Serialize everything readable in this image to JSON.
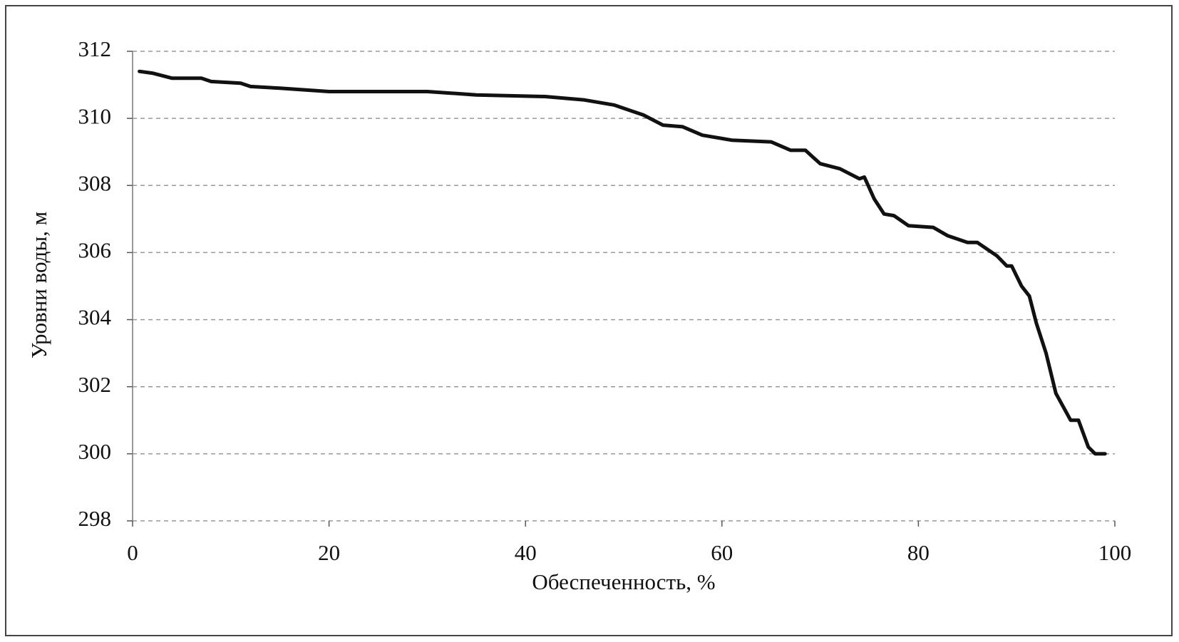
{
  "chart_data": {
    "type": "line",
    "x_label": "Обеспеченность, %",
    "y_label": "Уровни воды, м",
    "x": [
      0.7,
      2,
      4,
      7,
      8,
      11,
      12,
      15,
      20,
      30,
      35,
      42,
      46,
      49,
      52,
      54,
      56,
      58,
      61,
      65,
      67,
      68.5,
      70,
      72,
      74,
      74.5,
      75.5,
      76.5,
      77.5,
      79,
      81.5,
      83,
      85,
      86,
      88,
      89,
      89.5,
      90.5,
      91.3,
      92,
      93,
      94,
      95.5,
      96.3,
      97.3,
      98,
      99
    ],
    "values": [
      311.4,
      311.35,
      311.2,
      311.2,
      311.1,
      311.05,
      310.95,
      310.9,
      310.8,
      310.8,
      310.7,
      310.65,
      310.55,
      310.4,
      310.1,
      309.8,
      309.75,
      309.5,
      309.35,
      309.3,
      309.05,
      309.05,
      308.65,
      308.5,
      308.2,
      308.25,
      307.6,
      307.15,
      307.1,
      306.8,
      306.75,
      306.5,
      306.3,
      306.3,
      305.9,
      305.6,
      305.6,
      305.0,
      304.7,
      303.9,
      303.0,
      301.8,
      301.0,
      301.0,
      300.2,
      300.0,
      300.0
    ],
    "color": "#111111",
    "xlim": [
      0,
      100
    ],
    "xticks": [
      0,
      20,
      40,
      60,
      80,
      100
    ],
    "ylim": [
      298,
      312
    ],
    "yticks": [
      298,
      300,
      302,
      304,
      306,
      308,
      310,
      312
    ],
    "grid": true
  }
}
